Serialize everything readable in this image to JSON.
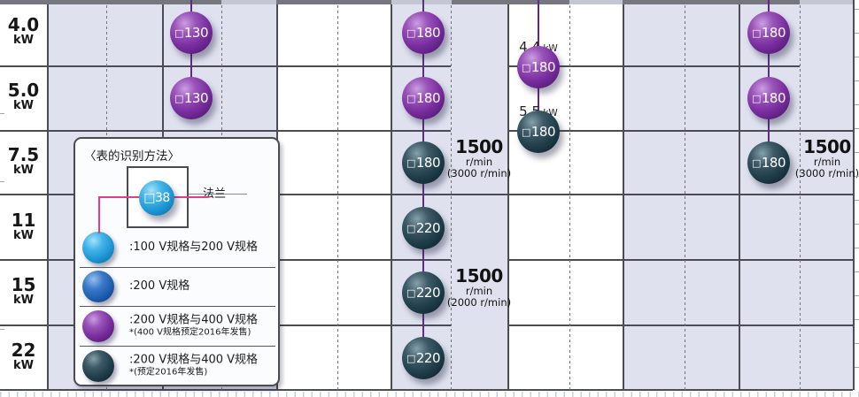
{
  "square_glyph": "□",
  "rows": [
    {
      "value": "4.0",
      "unit": "kW"
    },
    {
      "value": "5.0",
      "unit": "kW"
    },
    {
      "value": "7.5",
      "unit": "kW"
    },
    {
      "value": "11",
      "unit": "kW"
    },
    {
      "value": "15",
      "unit": "kW"
    },
    {
      "value": "22",
      "unit": "kW"
    }
  ],
  "ball_columns": [
    {
      "id": "column-130",
      "balls": [
        {
          "row": 0,
          "flange": "130",
          "spec": "spec_200_400"
        },
        {
          "row": 1,
          "flange": "130",
          "spec": "spec_200_400"
        }
      ]
    },
    {
      "id": "column-180-220",
      "balls": [
        {
          "row": 0,
          "flange": "180",
          "spec": "spec_200_400"
        },
        {
          "row": 1,
          "flange": "180",
          "spec": "spec_200_400"
        },
        {
          "row": 2,
          "flange": "180",
          "spec": "spec_200_400_future"
        },
        {
          "row": 3,
          "flange": "220",
          "spec": "spec_200_400_future"
        },
        {
          "row": 4,
          "flange": "220",
          "spec": "spec_200_400_future"
        },
        {
          "row": 5,
          "flange": "220",
          "spec": "spec_200_400_future"
        }
      ]
    },
    {
      "id": "column-intermediate-ratings",
      "balls": [
        {
          "row": 0.5,
          "flange": "180",
          "spec": "spec_200_400",
          "note_value": "4.4",
          "note_unit": "kW"
        },
        {
          "row": 1.5,
          "flange": "180",
          "spec": "spec_200_400_future",
          "note_value": "5.5",
          "note_unit": "kW"
        }
      ]
    },
    {
      "id": "column-right-180",
      "balls": [
        {
          "row": 0,
          "flange": "180",
          "spec": "spec_200_400"
        },
        {
          "row": 1,
          "flange": "180",
          "spec": "spec_200_400"
        },
        {
          "row": 2,
          "flange": "180",
          "spec": "spec_200_400_future"
        }
      ]
    }
  ],
  "annotations": [
    {
      "speed": "1500",
      "speed_unit": "r/min",
      "alt": "(3000 r/min)"
    },
    {
      "speed": "1500",
      "speed_unit": "r/min",
      "alt": "(2000 r/min)"
    },
    {
      "speed": "1500",
      "speed_unit": "r/min",
      "alt": "(3000 r/min)"
    }
  ],
  "legend": {
    "title": "〈表的识别方法〉",
    "example": {
      "flange": "38",
      "callout": "法兰"
    },
    "items": [
      {
        "spec": "spec_100_200",
        "label": ":100 V规格与200 V规格",
        "note": ""
      },
      {
        "spec": "spec_200",
        "label": ":200 V规格",
        "note": ""
      },
      {
        "spec": "spec_200_400",
        "label": ":200 V规格与400 V规格",
        "note": "*(400 V规格预定2016年发售)"
      },
      {
        "spec": "spec_200_400_future",
        "label": ":200 V规格与400 V规格",
        "note": "*(预定2016年发售)"
      }
    ]
  },
  "colors": {
    "spec_100_200": "#1ea0dd",
    "spec_200": "#1d64b8",
    "spec_200_400": "#7c35a0",
    "spec_200_400_future": "#1f3d49",
    "lavender_column": "#dfe2ee",
    "grid_line": "#4c4c54",
    "connector_purple": "#5e2b8c",
    "callout_pink": "#e8398f"
  }
}
